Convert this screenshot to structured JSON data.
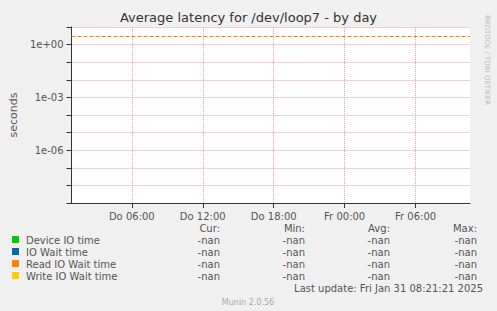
{
  "chart_data": {
    "type": "line",
    "title": "Average latency for /dev/loop7 - by day",
    "y_label": "seconds",
    "log": "y",
    "grid": true,
    "x": [
      6,
      12,
      18,
      24,
      30
    ],
    "xlim": [
      0.9,
      34.6
    ],
    "xticks": [
      {
        "value": 6,
        "label": "Do 06:00"
      },
      {
        "value": 12,
        "label": "Do 12:00"
      },
      {
        "value": 18,
        "label": "Do 18:00"
      },
      {
        "value": 24,
        "label": "Fr 00:00"
      },
      {
        "value": 30,
        "label": "Fr 06:00"
      }
    ],
    "ylim": [
      1e-09,
      10
    ],
    "yticks": [
      {
        "value": 1e-06,
        "label": "1e-06"
      },
      {
        "value": 0.001,
        "label": "1e-03"
      },
      {
        "value": 1,
        "label": "1e+00"
      }
    ],
    "series": [
      {
        "name": "Device IO time",
        "color": "#00cc00",
        "values": [
          null,
          null,
          null,
          null,
          null
        ],
        "stats": [
          "-nan",
          "-nan",
          "-nan",
          "-nan"
        ]
      },
      {
        "name": "IO Wait time",
        "color": "#0066b3",
        "values": [
          null,
          null,
          null,
          null,
          null
        ],
        "stats": [
          "-nan",
          "-nan",
          "-nan",
          "-nan"
        ]
      },
      {
        "name": "Read IO Wait time",
        "color": "#ff8000",
        "values": [
          null,
          null,
          null,
          null,
          null
        ],
        "stats": [
          "-nan",
          "-nan",
          "-nan",
          "-nan"
        ]
      },
      {
        "name": "Write IO Wait time",
        "color": "#ffcc00",
        "values": [
          null,
          null,
          null,
          null,
          null
        ],
        "stats": [
          "-nan",
          "-nan",
          "-nan",
          "-nan"
        ]
      }
    ],
    "stat_columns": [
      "Cur:",
      "Min:",
      "Avg:",
      "Max:"
    ],
    "reference_lines": [
      {
        "value": 3,
        "color": "#ff8000",
        "line_style": "dashed"
      }
    ],
    "footer": "Last update: Fri Jan 31 08:21:21 2025",
    "credit": "Munin 2.0.56",
    "watermark": "RRDTOOL / TOBI OETIKER"
  }
}
